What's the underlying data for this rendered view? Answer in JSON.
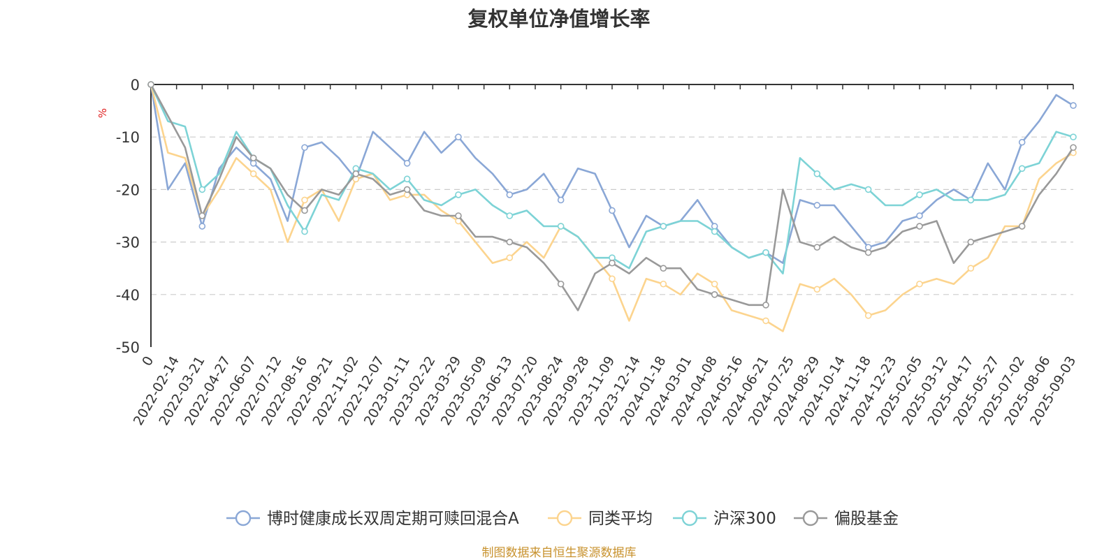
{
  "source_note": "制图数据来自恒生聚源数据库",
  "chart_data": {
    "type": "line",
    "title": "复权单位净值增长率",
    "ylabel": "%",
    "ylim": [
      -50,
      0
    ],
    "yticks": [
      0,
      -10,
      -20,
      -30,
      -40,
      -50
    ],
    "grid": true,
    "legend_position": "bottom",
    "x_tick_labels": [
      "0",
      "2022-02-14",
      "2022-03-21",
      "2022-04-27",
      "2022-06-07",
      "2022-07-12",
      "2022-08-16",
      "2022-09-21",
      "2022-11-02",
      "2022-12-07",
      "2023-01-11",
      "2023-02-22",
      "2023-03-29",
      "2023-05-09",
      "2023-06-13",
      "2023-07-20",
      "2023-08-24",
      "2023-09-28",
      "2023-11-09",
      "2023-12-14",
      "2024-01-18",
      "2024-03-01",
      "2024-04-08",
      "2024-05-16",
      "2024-06-21",
      "2024-07-25",
      "2024-08-29",
      "2024-10-14",
      "2024-11-18",
      "2024-12-23",
      "2025-02-05",
      "2025-03-12",
      "2025-04-17",
      "2025-05-27",
      "2025-07-02",
      "2025-08-06",
      "2025-09-03"
    ],
    "series": [
      {
        "name": "博时健康成长双周定期可赎回混合A",
        "color": "#8aa7d6",
        "values": [
          0,
          -20,
          -15,
          -27,
          -16,
          -12,
          -15,
          -18,
          -26,
          -12,
          -11,
          -14,
          -18,
          -9,
          -12,
          -15,
          -9,
          -13,
          -10,
          -14,
          -17,
          -21,
          -20,
          -17,
          -22,
          -16,
          -17,
          -24,
          -31,
          -25,
          -27,
          -26,
          -22,
          -27,
          -31,
          -33,
          -32,
          -34,
          -22,
          -23,
          -23,
          -27,
          -31,
          -30,
          -26,
          -25,
          -22,
          -20,
          -22,
          -15,
          -20,
          -11,
          -7,
          -2,
          -4
        ]
      },
      {
        "name": "同类平均",
        "color": "#fcd48e",
        "values": [
          0,
          -13,
          -14,
          -25,
          -20,
          -14,
          -17,
          -20,
          -30,
          -22,
          -20,
          -26,
          -18,
          -17,
          -22,
          -21,
          -21,
          -24,
          -26,
          -30,
          -34,
          -33,
          -30,
          -33,
          -27,
          -29,
          -33,
          -37,
          -45,
          -37,
          -38,
          -40,
          -36,
          -38,
          -43,
          -44,
          -45,
          -47,
          -38,
          -39,
          -37,
          -40,
          -44,
          -43,
          -40,
          -38,
          -37,
          -38,
          -35,
          -33,
          -27,
          -27,
          -18,
          -15,
          -13
        ]
      },
      {
        "name": "沪深300",
        "color": "#7dd3d6",
        "values": [
          0,
          -7,
          -8,
          -20,
          -17,
          -9,
          -14,
          -16,
          -23,
          -28,
          -21,
          -22,
          -16,
          -17,
          -20,
          -18,
          -22,
          -23,
          -21,
          -20,
          -23,
          -25,
          -24,
          -27,
          -27,
          -29,
          -33,
          -33,
          -35,
          -28,
          -27,
          -26,
          -26,
          -28,
          -31,
          -33,
          -32,
          -36,
          -14,
          -17,
          -20,
          -19,
          -20,
          -23,
          -23,
          -21,
          -20,
          -22,
          -22,
          -22,
          -21,
          -16,
          -15,
          -9,
          -10
        ]
      },
      {
        "name": "偏股基金",
        "color": "#999999",
        "values": [
          0,
          -6,
          -12,
          -25,
          -18,
          -10,
          -14,
          -16,
          -21,
          -24,
          -20,
          -21,
          -17,
          -18,
          -21,
          -20,
          -24,
          -25,
          -25,
          -29,
          -29,
          -30,
          -31,
          -34,
          -38,
          -43,
          -36,
          -34,
          -36,
          -33,
          -35,
          -35,
          -39,
          -40,
          -41,
          -42,
          -42,
          -20,
          -30,
          -31,
          -29,
          -31,
          -32,
          -31,
          -28,
          -27,
          -26,
          -34,
          -30,
          -29,
          -28,
          -27,
          -21,
          -17,
          -12
        ]
      }
    ]
  }
}
